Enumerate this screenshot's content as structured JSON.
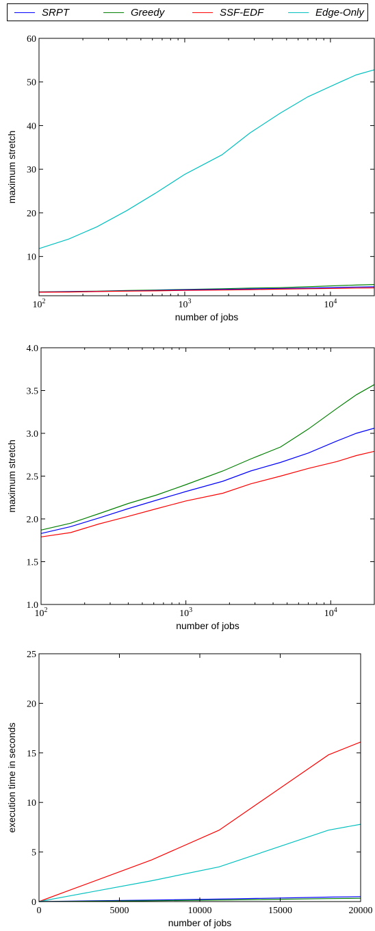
{
  "legend": {
    "items": [
      {
        "label": "SRPT",
        "color": "#0000ff"
      },
      {
        "label": "Greedy",
        "color": "#007f00"
      },
      {
        "label": "SSF-EDF",
        "color": "#ff0000"
      },
      {
        "label": "Edge-Only",
        "color": "#00bfbf"
      }
    ]
  },
  "chart_data": [
    {
      "type": "line",
      "xscale": "log",
      "xlabel": "number of jobs",
      "ylabel": "maximum stretch",
      "xlim": [
        100,
        20000
      ],
      "ylim": [
        1,
        60
      ],
      "xticks": [
        100,
        1000,
        10000
      ],
      "yticks": [
        10,
        20,
        30,
        40,
        50,
        60
      ],
      "x": [
        100,
        160,
        250,
        400,
        630,
        1000,
        1800,
        2800,
        4500,
        7000,
        11000,
        15000,
        20000
      ],
      "series": [
        {
          "name": "Greedy",
          "color": "#007f00",
          "values": [
            1.9,
            1.95,
            2.05,
            2.2,
            2.3,
            2.45,
            2.6,
            2.75,
            2.85,
            3.05,
            3.3,
            3.45,
            3.58
          ]
        },
        {
          "name": "SRPT",
          "color": "#0000ff",
          "values": [
            1.85,
            1.92,
            2.0,
            2.1,
            2.2,
            2.35,
            2.45,
            2.55,
            2.65,
            2.75,
            2.9,
            3.0,
            3.06
          ]
        },
        {
          "name": "SSF-EDF",
          "color": "#ff0000",
          "values": [
            1.8,
            1.85,
            1.95,
            2.05,
            2.12,
            2.22,
            2.3,
            2.4,
            2.5,
            2.6,
            2.68,
            2.75,
            2.8
          ]
        },
        {
          "name": "Edge-Only",
          "color": "#00bfbf",
          "values": [
            11.8,
            14.0,
            16.8,
            20.5,
            24.5,
            28.8,
            33.3,
            38.3,
            42.8,
            46.6,
            49.6,
            51.6,
            52.8
          ]
        }
      ]
    },
    {
      "type": "line",
      "xscale": "log",
      "xlabel": "number of jobs",
      "ylabel": "maximum stretch",
      "xlim": [
        100,
        20000
      ],
      "ylim": [
        1.0,
        4.0
      ],
      "xticks": [
        100,
        1000,
        10000
      ],
      "yticks": [
        1.0,
        1.5,
        2.0,
        2.5,
        3.0,
        3.5,
        4.0
      ],
      "x": [
        100,
        160,
        250,
        400,
        630,
        1000,
        1800,
        2800,
        4500,
        7000,
        11000,
        15000,
        20000
      ],
      "series": [
        {
          "name": "Greedy",
          "color": "#007f00",
          "values": [
            1.87,
            1.95,
            2.06,
            2.18,
            2.28,
            2.4,
            2.56,
            2.7,
            2.84,
            3.05,
            3.29,
            3.45,
            3.57
          ]
        },
        {
          "name": "SRPT",
          "color": "#0000ff",
          "values": [
            1.83,
            1.91,
            2.01,
            2.12,
            2.22,
            2.32,
            2.44,
            2.56,
            2.66,
            2.77,
            2.91,
            3.0,
            3.06
          ]
        },
        {
          "name": "SSF-EDF",
          "color": "#ff0000",
          "values": [
            1.79,
            1.84,
            1.94,
            2.03,
            2.12,
            2.21,
            2.3,
            2.41,
            2.5,
            2.59,
            2.67,
            2.74,
            2.79
          ]
        }
      ]
    },
    {
      "type": "line",
      "xscale": "linear",
      "xlabel": "number of jobs",
      "ylabel": "execution time in seconds",
      "xlim": [
        0,
        20000
      ],
      "ylim": [
        0,
        25
      ],
      "xticks": [
        0,
        5000,
        10000,
        15000,
        20000
      ],
      "yticks": [
        0,
        5,
        10,
        15,
        20,
        25
      ],
      "x": [
        0,
        2000,
        7000,
        11200,
        18000,
        20000
      ],
      "series": [
        {
          "name": "SSF-EDF",
          "color": "#ff0000",
          "values": [
            0,
            1.2,
            4.2,
            7.2,
            14.8,
            16.1
          ]
        },
        {
          "name": "Edge-Only",
          "color": "#00bfbf",
          "values": [
            0,
            0.6,
            2.1,
            3.5,
            7.2,
            7.8
          ]
        },
        {
          "name": "SRPT",
          "color": "#0000ff",
          "values": [
            0,
            0.05,
            0.15,
            0.25,
            0.45,
            0.5
          ]
        },
        {
          "name": "Greedy",
          "color": "#007f00",
          "values": [
            0,
            0.02,
            0.08,
            0.15,
            0.3,
            0.33
          ]
        }
      ]
    }
  ]
}
